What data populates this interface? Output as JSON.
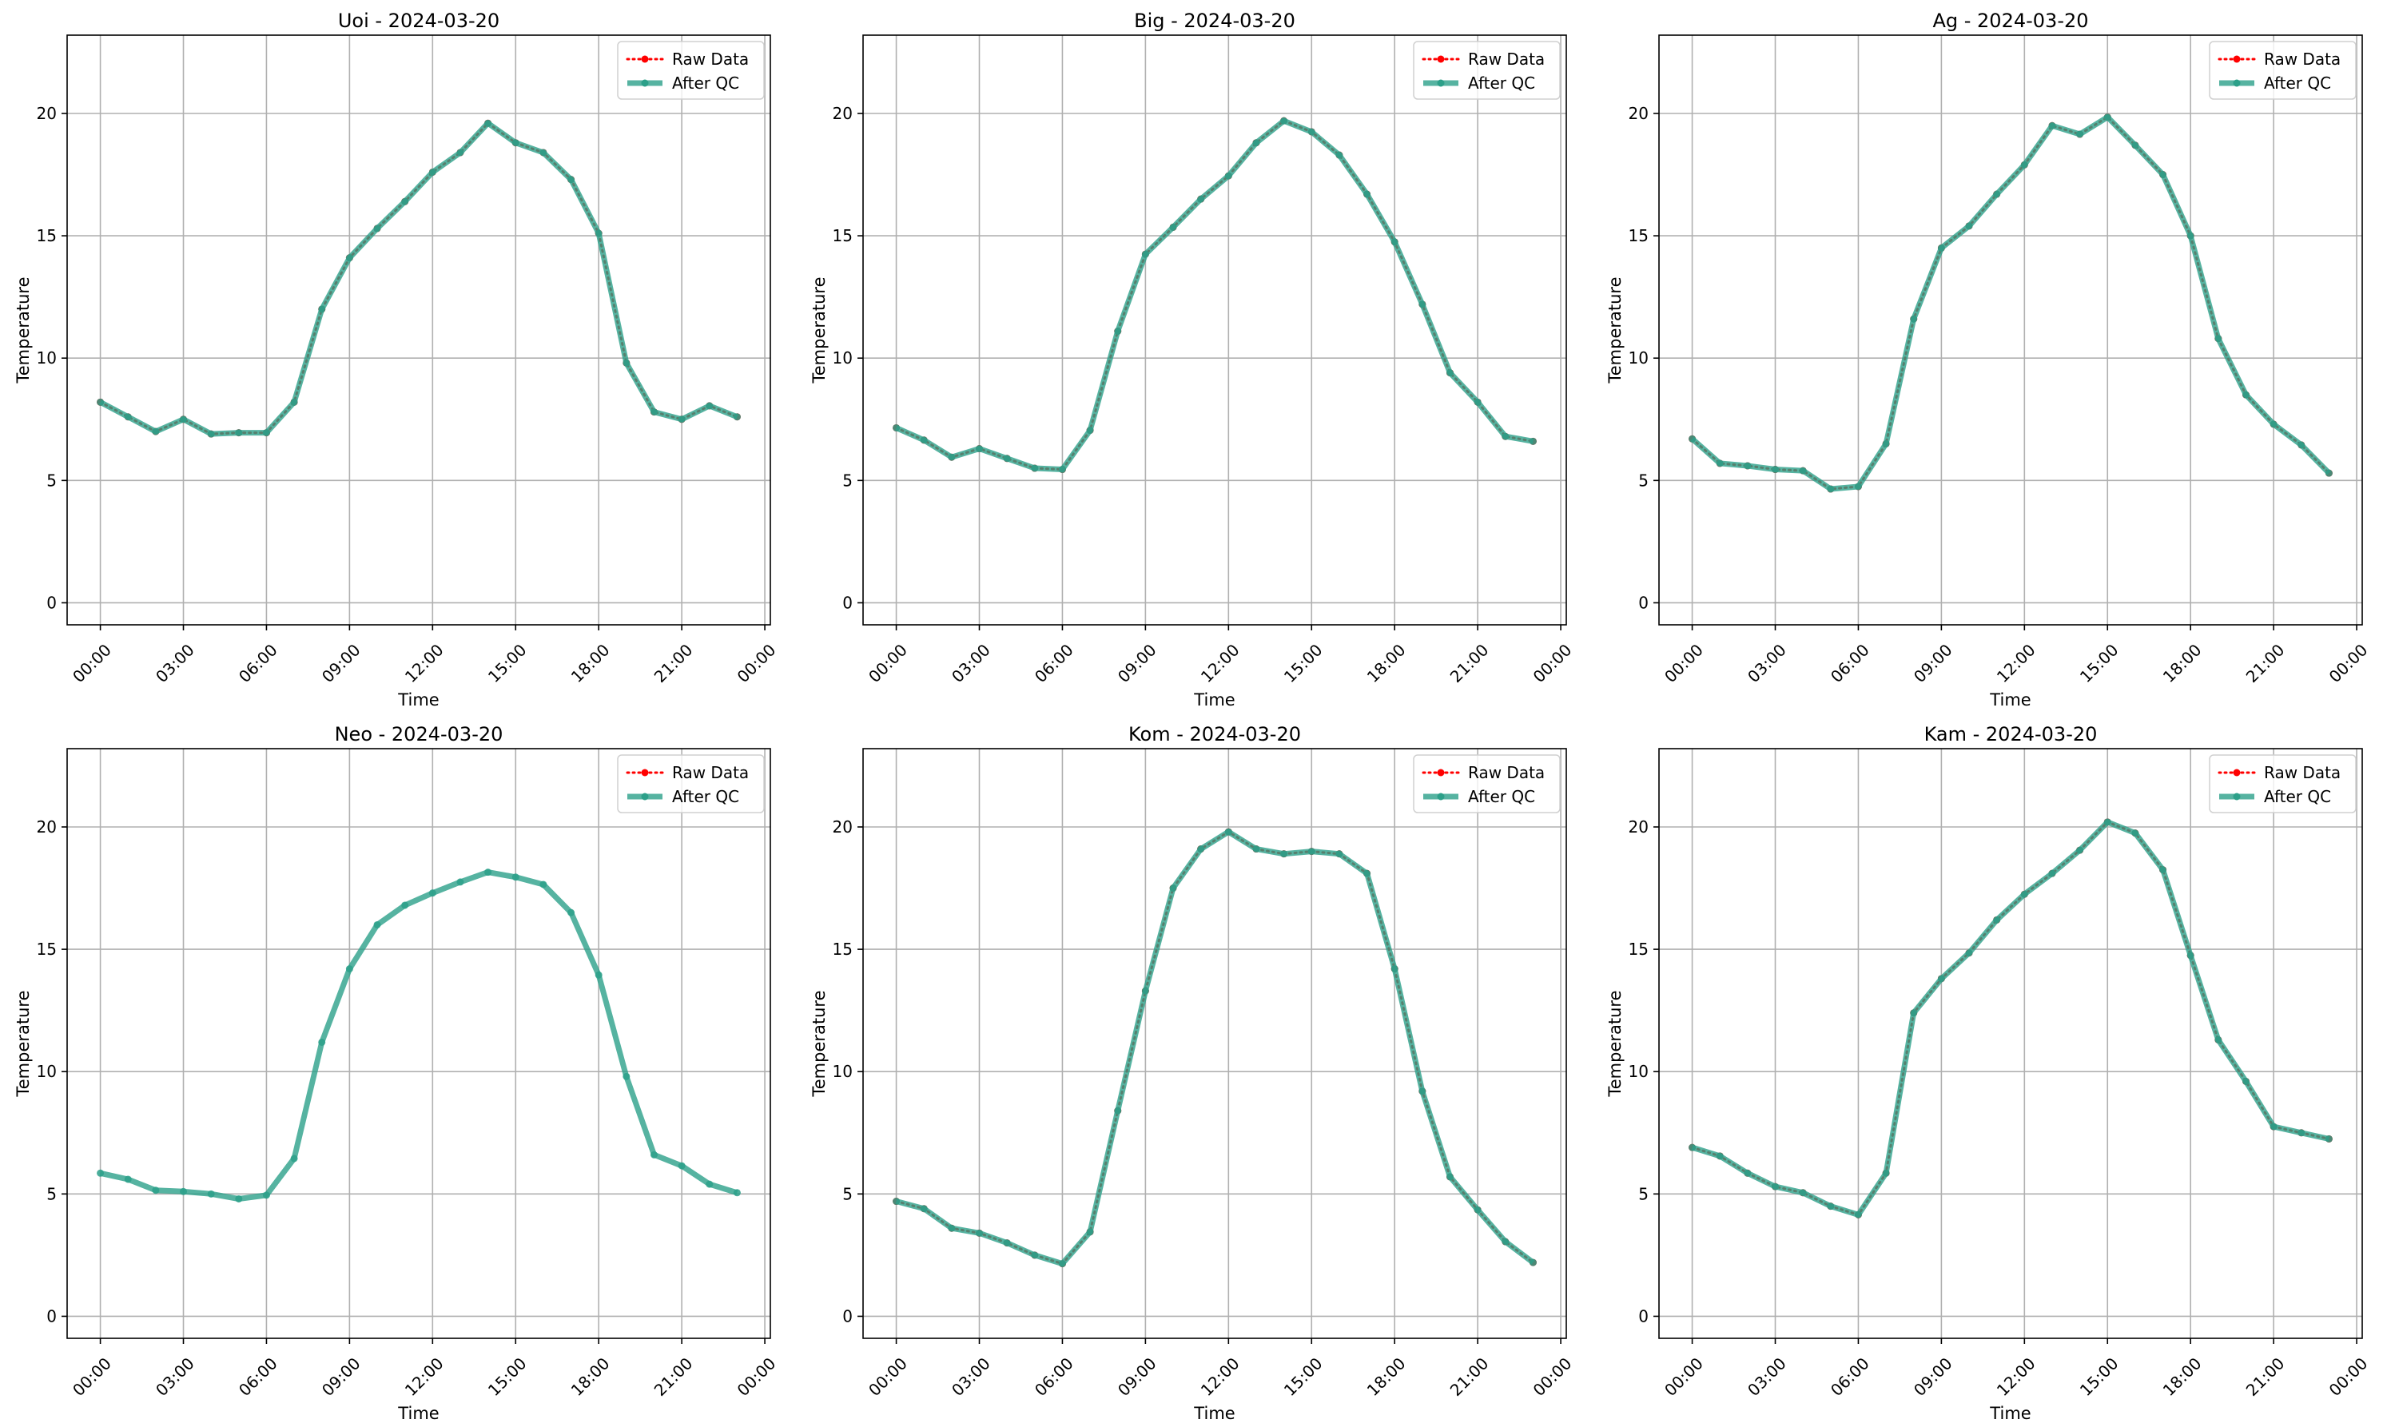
{
  "colors": {
    "raw": "#ff0000",
    "qc": "#2ca089",
    "grid": "#b0b0b0",
    "axes": "#000000"
  },
  "common": {
    "xlabel": "Time",
    "ylabel": "Temperature",
    "legend": [
      "Raw Data",
      "After QC"
    ],
    "legend_position": "upper-right",
    "x_ticks": [
      "00:00",
      "03:00",
      "06:00",
      "09:00",
      "12:00",
      "15:00",
      "18:00",
      "21:00",
      "00:00"
    ],
    "y_ticks": [
      0,
      5,
      10,
      15,
      20
    ],
    "grid": true
  },
  "chart_data": [
    {
      "type": "line",
      "title": "Uoi - 2024-03-20",
      "x": [
        0,
        1,
        2,
        3,
        4,
        5,
        6,
        7,
        8,
        9,
        10,
        11,
        12,
        13,
        14,
        15,
        16,
        17,
        18,
        19,
        20,
        21,
        22,
        23
      ],
      "xlim": [
        -1.2,
        24.2
      ],
      "ylim": [
        -0.9,
        23.2
      ],
      "xlabel": "Time",
      "ylabel": "Temperature",
      "series": [
        {
          "name": "Raw Data",
          "values": [
            8.2,
            7.6,
            7.0,
            7.5,
            6.9,
            6.95,
            6.95,
            8.2,
            12.0,
            14.1,
            15.3,
            16.4,
            17.6,
            18.4,
            19.6,
            18.8,
            18.4,
            17.3,
            15.1,
            9.8,
            7.8,
            7.5,
            8.05,
            7.6
          ]
        },
        {
          "name": "After QC",
          "values": [
            8.2,
            7.6,
            7.0,
            7.5,
            6.9,
            6.95,
            6.95,
            8.2,
            12.0,
            14.1,
            15.3,
            16.4,
            17.6,
            18.4,
            19.6,
            18.8,
            18.4,
            17.3,
            15.1,
            9.8,
            7.8,
            7.5,
            8.05,
            7.6
          ]
        }
      ]
    },
    {
      "type": "line",
      "title": "Big - 2024-03-20",
      "x": [
        0,
        1,
        2,
        3,
        4,
        5,
        6,
        7,
        8,
        9,
        10,
        11,
        12,
        13,
        14,
        15,
        16,
        17,
        18,
        19,
        20,
        21,
        22,
        23
      ],
      "xlim": [
        -1.2,
        24.2
      ],
      "ylim": [
        -0.9,
        23.2
      ],
      "xlabel": "Time",
      "ylabel": "Temperature",
      "series": [
        {
          "name": "Raw Data",
          "values": [
            7.15,
            6.65,
            5.95,
            6.3,
            5.9,
            5.5,
            5.45,
            7.05,
            11.1,
            14.25,
            15.35,
            16.5,
            17.45,
            18.8,
            19.7,
            19.25,
            18.3,
            16.7,
            14.75,
            12.2,
            9.4,
            8.2,
            6.8,
            6.6
          ]
        },
        {
          "name": "After QC",
          "values": [
            7.15,
            6.65,
            5.95,
            6.3,
            5.9,
            5.5,
            5.45,
            7.05,
            11.1,
            14.25,
            15.35,
            16.5,
            17.45,
            18.8,
            19.7,
            19.25,
            18.3,
            16.7,
            14.75,
            12.2,
            9.4,
            8.2,
            6.8,
            6.6
          ]
        }
      ]
    },
    {
      "type": "line",
      "title": "Ag - 2024-03-20",
      "x": [
        0,
        1,
        2,
        3,
        4,
        5,
        6,
        7,
        8,
        9,
        10,
        11,
        12,
        13,
        14,
        15,
        16,
        17,
        18,
        19,
        20,
        21,
        22,
        23
      ],
      "xlim": [
        -1.2,
        24.2
      ],
      "ylim": [
        -0.9,
        23.2
      ],
      "xlabel": "Time",
      "ylabel": "Temperature",
      "series": [
        {
          "name": "Raw Data",
          "values": [
            6.7,
            5.7,
            5.6,
            5.45,
            5.4,
            4.65,
            4.75,
            6.5,
            11.6,
            14.5,
            15.4,
            16.7,
            17.9,
            19.5,
            19.15,
            19.85,
            18.7,
            17.5,
            15.0,
            10.8,
            8.5,
            7.3,
            6.45,
            5.3
          ]
        },
        {
          "name": "After QC",
          "values": [
            6.7,
            5.7,
            5.6,
            5.45,
            5.4,
            4.65,
            4.75,
            6.5,
            11.6,
            14.5,
            15.4,
            16.7,
            17.9,
            19.5,
            19.15,
            19.85,
            18.7,
            17.5,
            15.0,
            10.8,
            8.5,
            7.3,
            6.45,
            5.3
          ]
        }
      ]
    },
    {
      "type": "line",
      "title": "Neo - 2024-03-20",
      "x": [
        0,
        1,
        2,
        3,
        4,
        5,
        6,
        7,
        8,
        9,
        10,
        11,
        12,
        13,
        14,
        15,
        16,
        17,
        18,
        19,
        20,
        21,
        22,
        23
      ],
      "xlim": [
        -1.2,
        24.2
      ],
      "ylim": [
        -0.9,
        23.2
      ],
      "xlabel": "Time",
      "ylabel": "Temperature",
      "series": [
        {
          "name": "Raw Data",
          "values": [
            null,
            null,
            null,
            null,
            null,
            null,
            null,
            null,
            null,
            null,
            null,
            null,
            null,
            null,
            null,
            null,
            null,
            null,
            null,
            null,
            null,
            null,
            null,
            null
          ]
        },
        {
          "name": "After QC",
          "values": [
            5.85,
            5.6,
            5.15,
            5.1,
            5.0,
            4.8,
            4.95,
            6.45,
            11.2,
            14.2,
            16.0,
            16.8,
            17.3,
            17.75,
            18.15,
            17.95,
            17.65,
            16.5,
            13.95,
            9.8,
            6.6,
            6.15,
            5.4,
            5.05
          ]
        }
      ]
    },
    {
      "type": "line",
      "title": "Kom - 2024-03-20",
      "x": [
        0,
        1,
        2,
        3,
        4,
        5,
        6,
        7,
        8,
        9,
        10,
        11,
        12,
        13,
        14,
        15,
        16,
        17,
        18,
        19,
        20,
        21,
        22,
        23
      ],
      "xlim": [
        -1.2,
        24.2
      ],
      "ylim": [
        -0.9,
        23.2
      ],
      "xlabel": "Time",
      "ylabel": "Temperature",
      "series": [
        {
          "name": "Raw Data",
          "values": [
            4.7,
            4.4,
            3.6,
            3.4,
            3.0,
            2.5,
            2.15,
            3.45,
            8.4,
            13.3,
            17.5,
            19.1,
            19.8,
            19.1,
            18.9,
            19.0,
            18.9,
            18.1,
            14.2,
            9.2,
            5.7,
            4.35,
            3.05,
            2.2
          ]
        },
        {
          "name": "After QC",
          "values": [
            4.7,
            4.4,
            3.6,
            3.4,
            3.0,
            2.5,
            2.15,
            3.45,
            8.4,
            13.3,
            17.5,
            19.1,
            19.8,
            19.1,
            18.9,
            19.0,
            18.9,
            18.1,
            14.2,
            9.2,
            5.7,
            4.35,
            3.05,
            2.2
          ]
        }
      ]
    },
    {
      "type": "line",
      "title": "Kam - 2024-03-20",
      "x": [
        0,
        1,
        2,
        3,
        4,
        5,
        6,
        7,
        8,
        9,
        10,
        11,
        12,
        13,
        14,
        15,
        16,
        17,
        18,
        19,
        20,
        21,
        22,
        23
      ],
      "xlim": [
        -1.2,
        24.2
      ],
      "ylim": [
        -0.9,
        23.2
      ],
      "xlabel": "Time",
      "ylabel": "Temperature",
      "series": [
        {
          "name": "Raw Data",
          "values": [
            6.9,
            6.55,
            5.85,
            5.3,
            5.05,
            4.5,
            4.15,
            5.85,
            12.4,
            13.8,
            14.85,
            16.2,
            17.25,
            18.1,
            19.05,
            20.2,
            19.75,
            18.25,
            14.75,
            11.3,
            9.6,
            7.75,
            7.5,
            7.25
          ]
        },
        {
          "name": "After QC",
          "values": [
            6.9,
            6.55,
            5.85,
            5.3,
            5.05,
            4.5,
            4.15,
            5.85,
            12.4,
            13.8,
            14.85,
            16.2,
            17.25,
            18.1,
            19.05,
            20.2,
            19.75,
            18.25,
            14.75,
            11.3,
            9.6,
            7.75,
            7.5,
            7.25
          ]
        }
      ]
    }
  ]
}
